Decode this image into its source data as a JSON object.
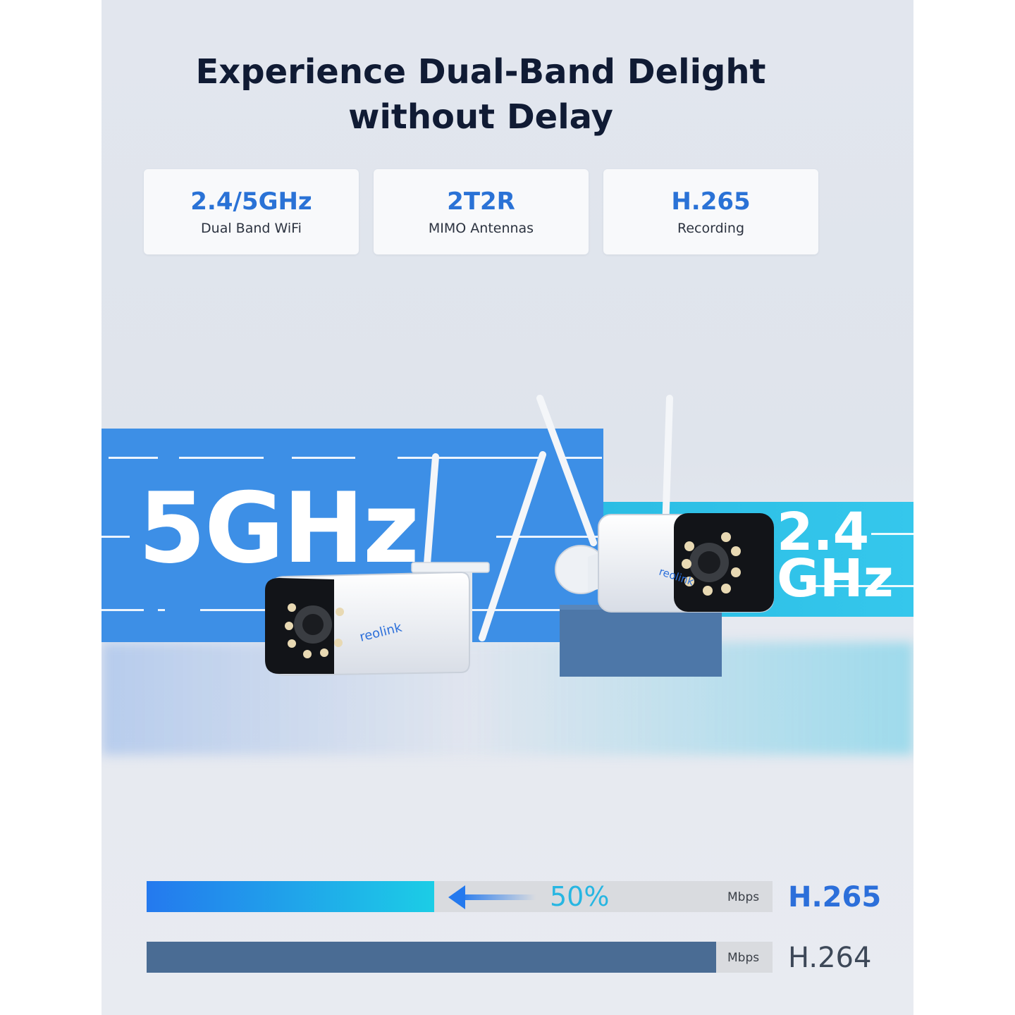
{
  "headline": {
    "line1": "Experience Dual-Band Delight",
    "line2": "without Delay"
  },
  "features": [
    {
      "value": "2.4/5GHz",
      "label": "Dual Band WiFi"
    },
    {
      "value": "2T2R",
      "label": "MIMO Antennas"
    },
    {
      "value": "H.265",
      "label": "Recording"
    }
  ],
  "bands": {
    "band_5": "5GHz",
    "band_24_line1": "2.4",
    "band_24_line2": "GHz"
  },
  "brand": "reolink",
  "bitrate": {
    "unit": "Mbps",
    "reduction_label": "50%",
    "rows": [
      {
        "codec": "H.265",
        "fill_fraction": 0.4595
      },
      {
        "codec": "H.264",
        "fill_fraction": 0.9099
      }
    ]
  },
  "colors": {
    "accent_blue": "#2a72d6",
    "band_5_blue": "#3d8fe6",
    "band_24_cyan": "#2bbde4",
    "h264_bar": "#4a6c94",
    "headline": "#101b34"
  },
  "icons": [
    "arrow-left-icon",
    "camera-illustration"
  ]
}
